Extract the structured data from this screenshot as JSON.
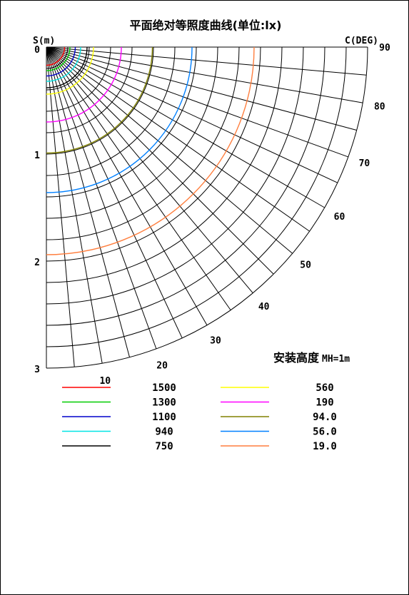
{
  "chart_data": {
    "type": "polar-isolux",
    "title": "平面绝对等照度曲线(单位:lx)",
    "left_axis_label": "S(m)",
    "angle_axis_label": "C(DEG)",
    "mount_note_prefix": "安装高度",
    "mount_note_value": "MH=1m",
    "radial_ticks": [
      "0",
      "1",
      "2",
      "3"
    ],
    "angle_ticks": [
      "10",
      "20",
      "30",
      "40",
      "50",
      "60",
      "70",
      "80",
      "90"
    ],
    "r_max": 3,
    "grid_rings": 15,
    "grid_spokes_deg": 5,
    "series": [
      {
        "name": "1500",
        "r": 0.17,
        "color": "#ff0000"
      },
      {
        "name": "1300",
        "r": 0.22,
        "color": "#00cc00"
      },
      {
        "name": "1100",
        "r": 0.27,
        "color": "#0000cc"
      },
      {
        "name": "940",
        "r": 0.32,
        "color": "#00e5e5"
      },
      {
        "name": "750",
        "r": 0.38,
        "color": "#000000"
      },
      {
        "name": "560",
        "r": 0.44,
        "color": "#ffff00"
      },
      {
        "name": "190",
        "r": 0.7,
        "color": "#ff00ff"
      },
      {
        "name": "94.0",
        "r": 0.99,
        "color": "#808000"
      },
      {
        "name": "56.0",
        "r": 1.36,
        "color": "#0080ff"
      },
      {
        "name": "19.0",
        "r": 1.94,
        "color": "#ff7f3f"
      }
    ]
  }
}
